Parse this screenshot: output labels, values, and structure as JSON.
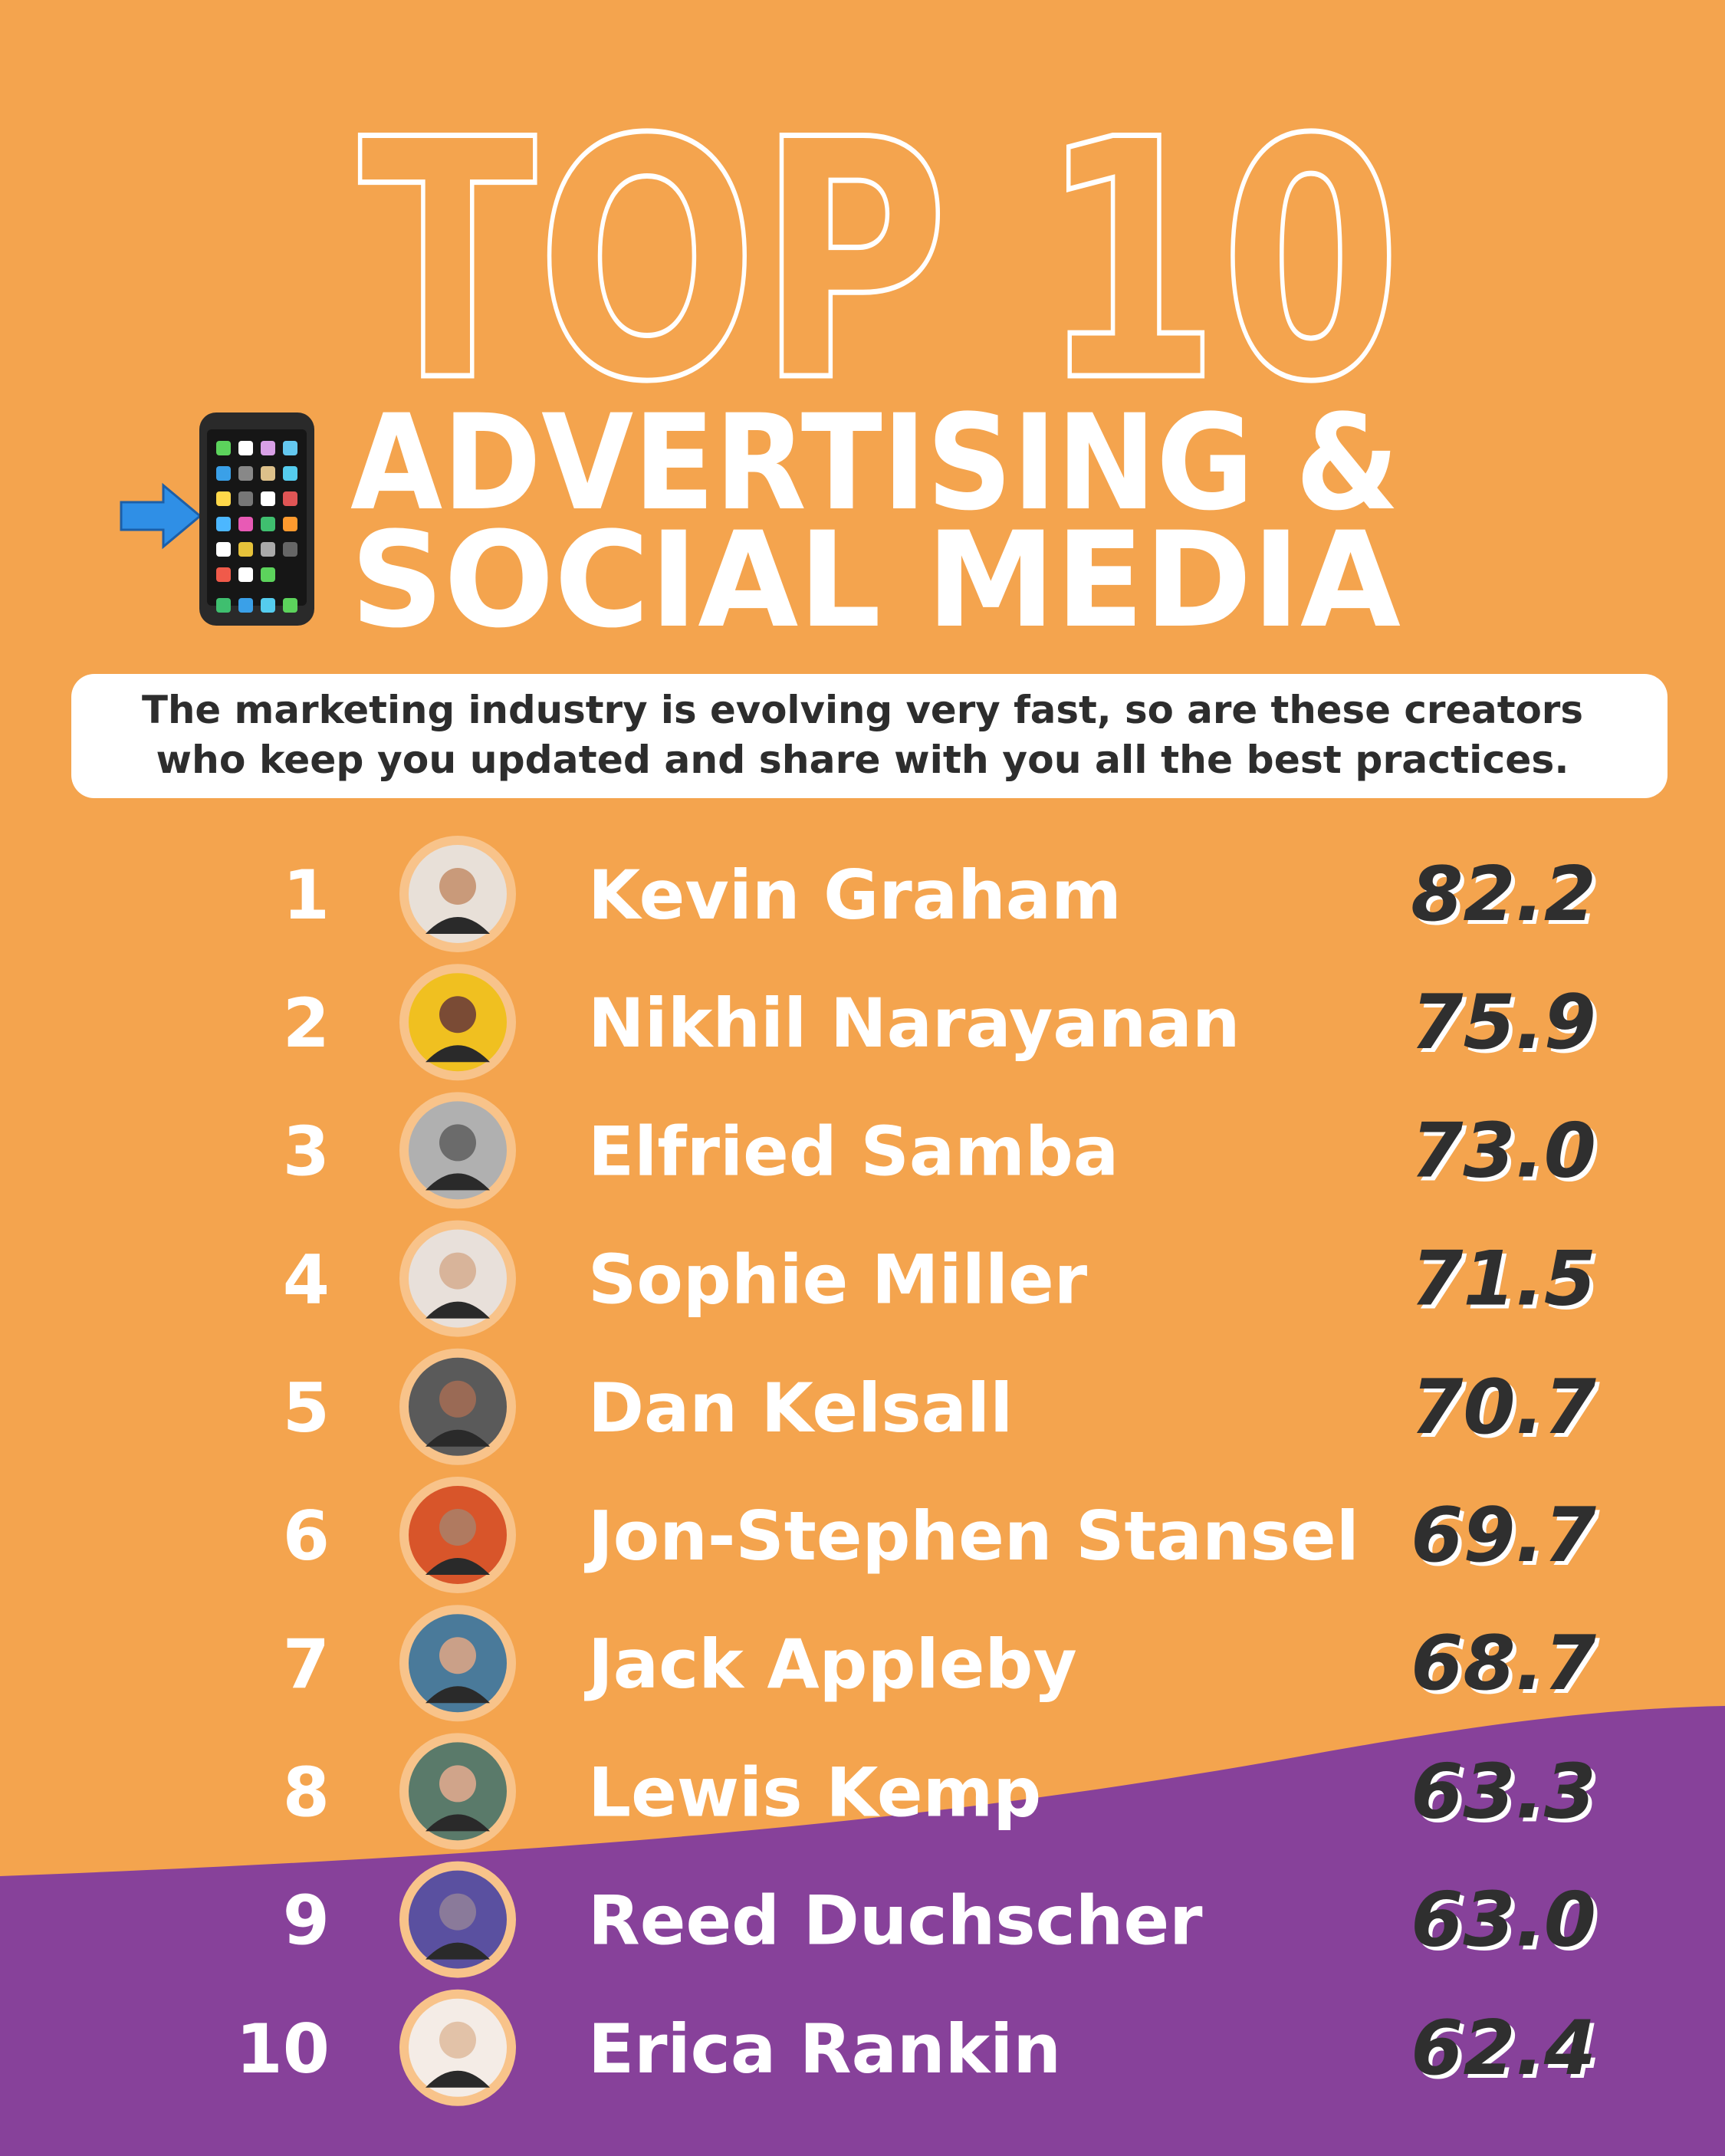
{
  "header": {
    "title": "TOP 10",
    "headline_lines": [
      "ADVERTISING &",
      "SOCIAL MEDIA"
    ]
  },
  "description_lines": [
    "The marketing industry is evolving very fast, so are these creators",
    "who keep you updated and share with you all the best practices."
  ],
  "rows": [
    {
      "rank": "1",
      "name": "Kevin Graham",
      "score": "82.2"
    },
    {
      "rank": "2",
      "name": "Nikhil Narayanan",
      "score": "75.9"
    },
    {
      "rank": "3",
      "name": "Elfried Samba",
      "score": "73.0"
    },
    {
      "rank": "4",
      "name": "Sophie Miller",
      "score": "71.5"
    },
    {
      "rank": "5",
      "name": "Dan Kelsall",
      "score": "70.7"
    },
    {
      "rank": "6",
      "name": "Jon-Stephen Stansel",
      "score": "69.7"
    },
    {
      "rank": "7",
      "name": "Jack Appleby",
      "score": "68.7"
    },
    {
      "rank": "8",
      "name": "Lewis Kemp",
      "score": "63.3"
    },
    {
      "rank": "9",
      "name": "Reed Duchscher",
      "score": "63.0"
    },
    {
      "rank": "10",
      "name": "Erica Rankin",
      "score": "62.4"
    }
  ]
}
